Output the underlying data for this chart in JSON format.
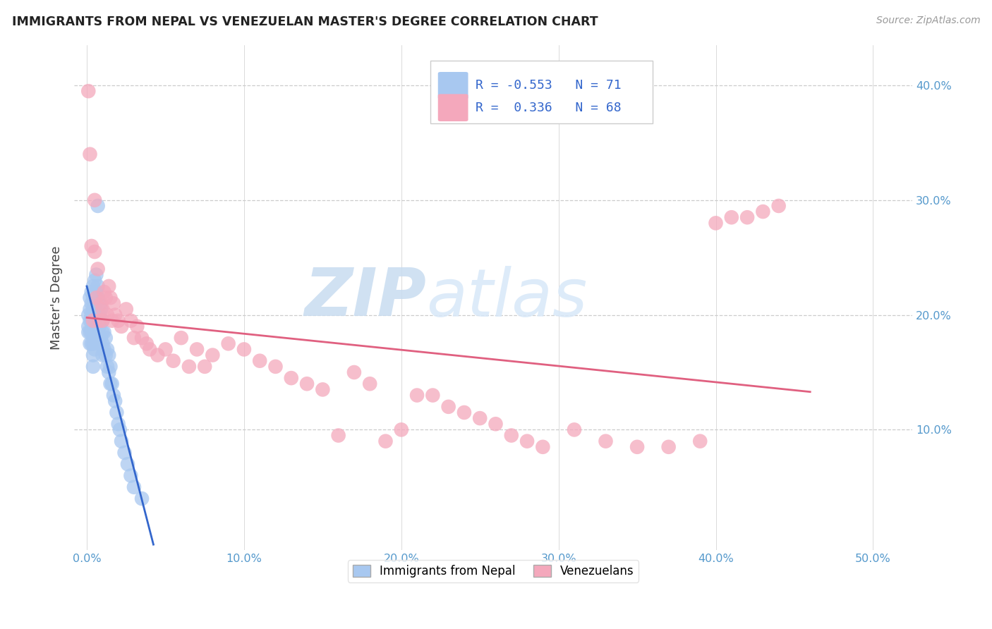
{
  "title": "IMMIGRANTS FROM NEPAL VS VENEZUELAN MASTER'S DEGREE CORRELATION CHART",
  "source": "Source: ZipAtlas.com",
  "ylabel": "Master's Degree",
  "xlabel_ticks": [
    "0.0%",
    "10.0%",
    "20.0%",
    "30.0%",
    "40.0%",
    "50.0%"
  ],
  "xlabel_vals": [
    0.0,
    0.1,
    0.2,
    0.3,
    0.4,
    0.5
  ],
  "ylabel_ticks": [
    "10.0%",
    "20.0%",
    "30.0%",
    "40.0%"
  ],
  "ylabel_vals": [
    0.1,
    0.2,
    0.3,
    0.4
  ],
  "xlim": [
    -0.008,
    0.525
  ],
  "ylim": [
    -0.005,
    0.435
  ],
  "nepal_color": "#A8C8F0",
  "venezuela_color": "#F4A8BC",
  "nepal_line_color": "#3366CC",
  "venezuela_line_color": "#E06080",
  "nepal_R": -0.553,
  "nepal_N": 71,
  "venezuela_R": 0.336,
  "venezuela_N": 68,
  "legend_nepal_label": "Immigrants from Nepal",
  "legend_venezuela_label": "Venezuelans",
  "watermark_zip": "ZIP",
  "watermark_atlas": "atlas",
  "background_color": "#ffffff",
  "grid_color": "#cccccc",
  "title_color": "#222222",
  "axis_tick_color": "#5599CC",
  "nepal_x": [
    0.001,
    0.001,
    0.001,
    0.002,
    0.002,
    0.002,
    0.002,
    0.002,
    0.003,
    0.003,
    0.003,
    0.003,
    0.003,
    0.003,
    0.004,
    0.004,
    0.004,
    0.004,
    0.004,
    0.004,
    0.004,
    0.004,
    0.005,
    0.005,
    0.005,
    0.005,
    0.005,
    0.005,
    0.005,
    0.006,
    0.006,
    0.006,
    0.006,
    0.006,
    0.007,
    0.007,
    0.007,
    0.007,
    0.008,
    0.008,
    0.008,
    0.008,
    0.009,
    0.009,
    0.009,
    0.01,
    0.01,
    0.01,
    0.01,
    0.011,
    0.011,
    0.012,
    0.012,
    0.013,
    0.013,
    0.014,
    0.014,
    0.015,
    0.015,
    0.016,
    0.017,
    0.018,
    0.019,
    0.02,
    0.021,
    0.022,
    0.024,
    0.026,
    0.028,
    0.03,
    0.035
  ],
  "nepal_y": [
    0.2,
    0.19,
    0.185,
    0.215,
    0.205,
    0.195,
    0.185,
    0.175,
    0.22,
    0.21,
    0.2,
    0.195,
    0.185,
    0.175,
    0.225,
    0.215,
    0.205,
    0.195,
    0.185,
    0.175,
    0.165,
    0.155,
    0.23,
    0.22,
    0.21,
    0.2,
    0.19,
    0.18,
    0.17,
    0.235,
    0.22,
    0.21,
    0.2,
    0.19,
    0.295,
    0.225,
    0.215,
    0.2,
    0.21,
    0.2,
    0.19,
    0.175,
    0.205,
    0.195,
    0.18,
    0.195,
    0.185,
    0.175,
    0.165,
    0.185,
    0.17,
    0.18,
    0.165,
    0.17,
    0.155,
    0.165,
    0.15,
    0.155,
    0.14,
    0.14,
    0.13,
    0.125,
    0.115,
    0.105,
    0.1,
    0.09,
    0.08,
    0.07,
    0.06,
    0.05,
    0.04
  ],
  "venezuela_x": [
    0.001,
    0.002,
    0.003,
    0.004,
    0.005,
    0.005,
    0.006,
    0.007,
    0.008,
    0.009,
    0.01,
    0.01,
    0.011,
    0.012,
    0.013,
    0.014,
    0.015,
    0.016,
    0.017,
    0.018,
    0.02,
    0.022,
    0.025,
    0.028,
    0.03,
    0.032,
    0.035,
    0.038,
    0.04,
    0.045,
    0.05,
    0.055,
    0.06,
    0.065,
    0.07,
    0.075,
    0.08,
    0.09,
    0.1,
    0.11,
    0.12,
    0.13,
    0.14,
    0.15,
    0.16,
    0.17,
    0.18,
    0.19,
    0.2,
    0.21,
    0.22,
    0.23,
    0.24,
    0.25,
    0.26,
    0.27,
    0.28,
    0.29,
    0.31,
    0.33,
    0.35,
    0.37,
    0.39,
    0.4,
    0.41,
    0.42,
    0.43,
    0.44
  ],
  "venezuela_y": [
    0.395,
    0.34,
    0.26,
    0.195,
    0.3,
    0.255,
    0.215,
    0.24,
    0.195,
    0.21,
    0.205,
    0.195,
    0.22,
    0.215,
    0.2,
    0.225,
    0.215,
    0.195,
    0.21,
    0.2,
    0.195,
    0.19,
    0.205,
    0.195,
    0.18,
    0.19,
    0.18,
    0.175,
    0.17,
    0.165,
    0.17,
    0.16,
    0.18,
    0.155,
    0.17,
    0.155,
    0.165,
    0.175,
    0.17,
    0.16,
    0.155,
    0.145,
    0.14,
    0.135,
    0.095,
    0.15,
    0.14,
    0.09,
    0.1,
    0.13,
    0.13,
    0.12,
    0.115,
    0.11,
    0.105,
    0.095,
    0.09,
    0.085,
    0.1,
    0.09,
    0.085,
    0.085,
    0.09,
    0.28,
    0.285,
    0.285,
    0.29,
    0.295
  ]
}
